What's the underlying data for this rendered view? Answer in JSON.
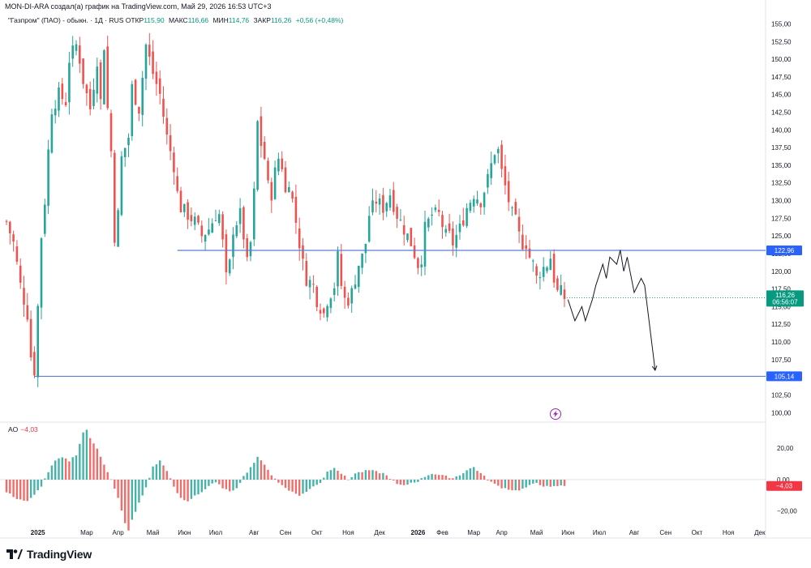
{
  "header": {
    "text": "MON-DI-ARA создал(а) график на TradingView.com, Май 29, 2026 16:53 UTC+3"
  },
  "legend": {
    "symbol": "\"Газпром\" (ПАО) - обыкн. · 1Д · RUS",
    "open_label": "ОТКР",
    "open": "115,90",
    "high_label": "МАКС",
    "high": "116,66",
    "low_label": "МИН",
    "low": "114,76",
    "close_label": "ЗАКР",
    "close": "116,26",
    "change": "+0,56 (+0,48%)"
  },
  "ao_legend": {
    "name": "AO",
    "value": "−4,03"
  },
  "logo": {
    "text": "TradingView",
    "icon": "tradingview-logo-icon"
  },
  "colors": {
    "up": "#26a69a",
    "down": "#ef5350",
    "line": "#5b7fd4",
    "badge": "#2962ff",
    "last": "#089981"
  },
  "chart_data": [
    {
      "type": "candlestick",
      "ylim": [
        99,
        157
      ],
      "y_ticks": [
        "100,00",
        "102,50",
        "105,00",
        "107,50",
        "110,00",
        "112,50",
        "115,00",
        "117,50",
        "120,00",
        "122,50",
        "125,00",
        "127,50",
        "130,00",
        "132,50",
        "135,00",
        "137,50",
        "140,00",
        "142,50",
        "145,00",
        "147,50",
        "150,00",
        "152,50",
        "155,00"
      ],
      "x_labels": [
        "2025",
        "Мар",
        "Апр",
        "Май",
        "Июн",
        "Июл",
        "Авг",
        "Сен",
        "Окт",
        "Ноя",
        "Дек",
        "2026",
        "Фев",
        "Мар",
        "Апр",
        "Май",
        "Июн",
        "Июл",
        "Авг",
        "Сен",
        "Окт",
        "Ноя",
        "Дек"
      ],
      "x_label_index": [
        9,
        23,
        32,
        42,
        51,
        60,
        71,
        80,
        89,
        98,
        107,
        118,
        125,
        134,
        142,
        152,
        161,
        170,
        180,
        189,
        198,
        207,
        216
      ],
      "close_path": [
        [
          0,
          127
        ],
        [
          2,
          124
        ],
        [
          4,
          118
        ],
        [
          6,
          114
        ],
        [
          7,
          108
        ],
        [
          8,
          106
        ],
        [
          9,
          115
        ],
        [
          10,
          125
        ],
        [
          11,
          130
        ],
        [
          12,
          137
        ],
        [
          13,
          143
        ],
        [
          15,
          145
        ],
        [
          17,
          144
        ],
        [
          18,
          150
        ],
        [
          20,
          152
        ],
        [
          21,
          150
        ],
        [
          22,
          147
        ],
        [
          24,
          143
        ],
        [
          26,
          150
        ],
        [
          27,
          144
        ],
        [
          28,
          152
        ],
        [
          29,
          143
        ],
        [
          30,
          137
        ],
        [
          31,
          125
        ],
        [
          32,
          128
        ],
        [
          33,
          136
        ],
        [
          35,
          139
        ],
        [
          36,
          146
        ],
        [
          38,
          143
        ],
        [
          40,
          152
        ],
        [
          42,
          148
        ],
        [
          44,
          145
        ],
        [
          46,
          139
        ],
        [
          48,
          135
        ],
        [
          49,
          131
        ],
        [
          50,
          129
        ],
        [
          52,
          128
        ],
        [
          54,
          127
        ],
        [
          56,
          125
        ],
        [
          58,
          126
        ],
        [
          60,
          128
        ],
        [
          61,
          128
        ],
        [
          62,
          124
        ],
        [
          63,
          119
        ],
        [
          64,
          121
        ],
        [
          65,
          126
        ],
        [
          67,
          128
        ],
        [
          68,
          125
        ],
        [
          69,
          121
        ],
        [
          70,
          124
        ],
        [
          71,
          131
        ],
        [
          72,
          141
        ],
        [
          73,
          138
        ],
        [
          74,
          136
        ],
        [
          75,
          132
        ],
        [
          76,
          131
        ],
        [
          77,
          134
        ],
        [
          78,
          136
        ],
        [
          79,
          135
        ],
        [
          80,
          131
        ],
        [
          81,
          133
        ],
        [
          82,
          130
        ],
        [
          83,
          127
        ],
        [
          84,
          124
        ],
        [
          85,
          121
        ],
        [
          86,
          119
        ],
        [
          88,
          118
        ],
        [
          89,
          116
        ],
        [
          90,
          115
        ],
        [
          91,
          114
        ],
        [
          92,
          116
        ],
        [
          94,
          118
        ],
        [
          95,
          122
        ],
        [
          96,
          118
        ],
        [
          97,
          116
        ],
        [
          98,
          116
        ],
        [
          99,
          117
        ],
        [
          100,
          119
        ],
        [
          101,
          121
        ],
        [
          102,
          122
        ],
        [
          103,
          124
        ],
        [
          104,
          128
        ],
        [
          106,
          130
        ],
        [
          108,
          129
        ],
        [
          110,
          131
        ],
        [
          112,
          128
        ],
        [
          114,
          126
        ],
        [
          116,
          124
        ],
        [
          118,
          121
        ],
        [
          119,
          122
        ],
        [
          120,
          126
        ],
        [
          122,
          128
        ],
        [
          124,
          128
        ],
        [
          126,
          125
        ],
        [
          127,
          125
        ],
        [
          128,
          124
        ],
        [
          130,
          126
        ],
        [
          132,
          129
        ],
        [
          134,
          131
        ],
        [
          136,
          130
        ],
        [
          138,
          133
        ],
        [
          139,
          135
        ],
        [
          140,
          137
        ],
        [
          141,
          137
        ],
        [
          142,
          134
        ],
        [
          143,
          132
        ],
        [
          144,
          130
        ],
        [
          145,
          128
        ],
        [
          146,
          127
        ],
        [
          147,
          125
        ],
        [
          148,
          124
        ],
        [
          149,
          124
        ],
        [
          150,
          122
        ],
        [
          151,
          121
        ],
        [
          152,
          119
        ],
        [
          153,
          120
        ],
        [
          155,
          121
        ],
        [
          156,
          122
        ],
        [
          157,
          119
        ],
        [
          158,
          117
        ],
        [
          159,
          117
        ],
        [
          160,
          116.26
        ]
      ],
      "high_label": "155,00",
      "hlines": [
        {
          "value": 122.96,
          "label": "122,96",
          "start_index": 49
        },
        {
          "value": 105.14,
          "label": "105,14",
          "start_index": 8
        }
      ],
      "last_price": {
        "value": 116.26,
        "label": "116,26",
        "timer": "06:56:07"
      },
      "forecast": [
        [
          161,
          116
        ],
        [
          163,
          113
        ],
        [
          165,
          115
        ],
        [
          166,
          113
        ],
        [
          168,
          116
        ],
        [
          169,
          118
        ],
        [
          171,
          121
        ],
        [
          172,
          119
        ],
        [
          173,
          122
        ],
        [
          175,
          121
        ],
        [
          176,
          123
        ],
        [
          177,
          120
        ],
        [
          178,
          122
        ],
        [
          180,
          117
        ],
        [
          182,
          119
        ],
        [
          183,
          118
        ],
        [
          186,
          106
        ]
      ]
    },
    {
      "type": "histogram",
      "name": "AO",
      "ylim": [
        -30,
        32
      ],
      "y_ticks": [
        "20,00",
        "0,00",
        "−20,00"
      ],
      "last_value": {
        "value": -4.03,
        "label": "−4,03"
      },
      "values_path": [
        [
          0,
          -8
        ],
        [
          3,
          -12
        ],
        [
          6,
          -14
        ],
        [
          8,
          -10
        ],
        [
          10,
          -4
        ],
        [
          12,
          5
        ],
        [
          14,
          12
        ],
        [
          16,
          14
        ],
        [
          18,
          12
        ],
        [
          20,
          16
        ],
        [
          22,
          30
        ],
        [
          23,
          32
        ],
        [
          24,
          26
        ],
        [
          26,
          20
        ],
        [
          28,
          10
        ],
        [
          30,
          0
        ],
        [
          32,
          -12
        ],
        [
          34,
          -28
        ],
        [
          35,
          -32
        ],
        [
          36,
          -26
        ],
        [
          38,
          -15
        ],
        [
          40,
          -5
        ],
        [
          42,
          8
        ],
        [
          44,
          12
        ],
        [
          46,
          6
        ],
        [
          48,
          -5
        ],
        [
          50,
          -12
        ],
        [
          52,
          -14
        ],
        [
          54,
          -10
        ],
        [
          56,
          -8
        ],
        [
          58,
          -4
        ],
        [
          60,
          -2
        ],
        [
          62,
          -5
        ],
        [
          64,
          -8
        ],
        [
          66,
          -5
        ],
        [
          68,
          2
        ],
        [
          70,
          8
        ],
        [
          72,
          14
        ],
        [
          74,
          10
        ],
        [
          76,
          3
        ],
        [
          78,
          -2
        ],
        [
          80,
          -5
        ],
        [
          82,
          -8
        ],
        [
          84,
          -10
        ],
        [
          86,
          -8
        ],
        [
          88,
          -4
        ],
        [
          90,
          -2
        ],
        [
          92,
          5
        ],
        [
          94,
          8
        ],
        [
          96,
          4
        ],
        [
          98,
          0
        ],
        [
          100,
          4
        ],
        [
          104,
          6
        ],
        [
          108,
          4
        ],
        [
          110,
          1
        ],
        [
          112,
          -3
        ],
        [
          114,
          -4
        ],
        [
          116,
          -2
        ],
        [
          118,
          -1
        ],
        [
          120,
          2
        ],
        [
          122,
          4
        ],
        [
          126,
          2
        ],
        [
          128,
          1
        ],
        [
          130,
          3
        ],
        [
          132,
          6
        ],
        [
          134,
          8
        ],
        [
          136,
          4
        ],
        [
          138,
          0
        ],
        [
          140,
          -3
        ],
        [
          142,
          -5
        ],
        [
          144,
          -6
        ],
        [
          146,
          -7
        ],
        [
          148,
          -6
        ],
        [
          150,
          -4
        ],
        [
          152,
          -2
        ],
        [
          154,
          -4
        ],
        [
          156,
          -5
        ],
        [
          158,
          -4
        ],
        [
          160,
          -4
        ]
      ]
    }
  ]
}
